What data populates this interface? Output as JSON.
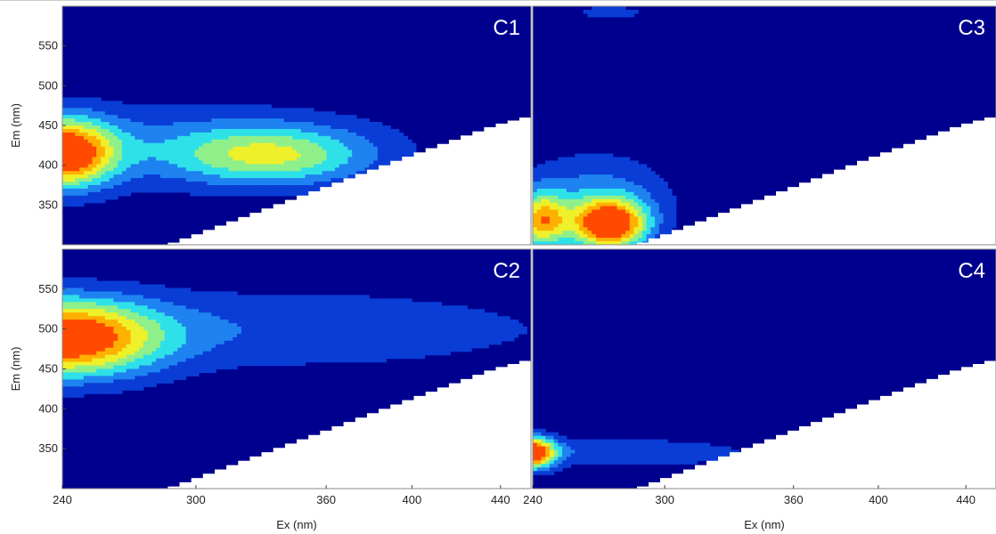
{
  "chart_data": {
    "type": "heatmap",
    "colormap": [
      "#00008f",
      "#0a3dd6",
      "#1e82f0",
      "#2ee1e8",
      "#8ff08a",
      "#eef02a",
      "#ffb000",
      "#ff4a00",
      "#c80000"
    ],
    "background_color": "#00008f",
    "masked_color": "#ffffff",
    "levels": 8,
    "panels": [
      {
        "id": "C1",
        "label": "C1",
        "xlim": [
          240,
          450
        ],
        "ylim": [
          300,
          600
        ],
        "ylabel": "Em (nm)",
        "yticks": [
          350,
          400,
          450,
          500,
          550
        ],
        "xlabel": "",
        "xticks": [],
        "peaks": [
          {
            "ex": 240,
            "em": 415,
            "amp": 1.0,
            "sx": 16,
            "sy": 30
          },
          {
            "ex": 335,
            "em": 412,
            "amp": 0.5,
            "sx": 32,
            "sy": 26
          },
          {
            "ex": 290,
            "em": 425,
            "amp": 0.24,
            "sx": 70,
            "sy": 40
          }
        ]
      },
      {
        "id": "C3",
        "label": "C3",
        "xlim": [
          240,
          450
        ],
        "ylim": [
          300,
          600
        ],
        "ylabel": "",
        "yticks": [],
        "xlabel": "",
        "xticks": [],
        "peaks": [
          {
            "ex": 275,
            "em": 325,
            "amp": 1.0,
            "sx": 12,
            "sy": 22
          },
          {
            "ex": 244,
            "em": 330,
            "amp": 0.7,
            "sx": 8,
            "sy": 25
          },
          {
            "ex": 268,
            "em": 360,
            "amp": 0.3,
            "sx": 25,
            "sy": 40
          },
          {
            "ex": 275,
            "em": 592,
            "amp": 0.25,
            "sx": 10,
            "sy": 6
          }
        ]
      },
      {
        "id": "C2",
        "label": "C2",
        "xlim": [
          240,
          450
        ],
        "ylim": [
          300,
          600
        ],
        "ylabel": "Em (nm)",
        "yticks": [
          350,
          400,
          450,
          500,
          550
        ],
        "xlabel": "Ex (nm)",
        "xticks": [
          240,
          300,
          360,
          400,
          440
        ],
        "peaks": [
          {
            "ex": 240,
            "em": 488,
            "amp": 1.0,
            "sx": 30,
            "sy": 34
          },
          {
            "ex": 340,
            "em": 500,
            "amp": 0.23,
            "sx": 95,
            "sy": 38
          }
        ]
      },
      {
        "id": "C4",
        "label": "C4",
        "xlim": [
          240,
          450
        ],
        "ylim": [
          300,
          600
        ],
        "ylabel": "",
        "yticks": [],
        "xlabel": "Ex (nm)",
        "xticks": [
          240,
          300,
          360,
          400,
          440
        ],
        "peaks": [
          {
            "ex": 240,
            "em": 345,
            "amp": 1.0,
            "sx": 7,
            "sy": 14
          },
          {
            "ex": 280,
            "em": 345,
            "amp": 0.25,
            "sx": 45,
            "sy": 13
          }
        ]
      }
    ]
  }
}
